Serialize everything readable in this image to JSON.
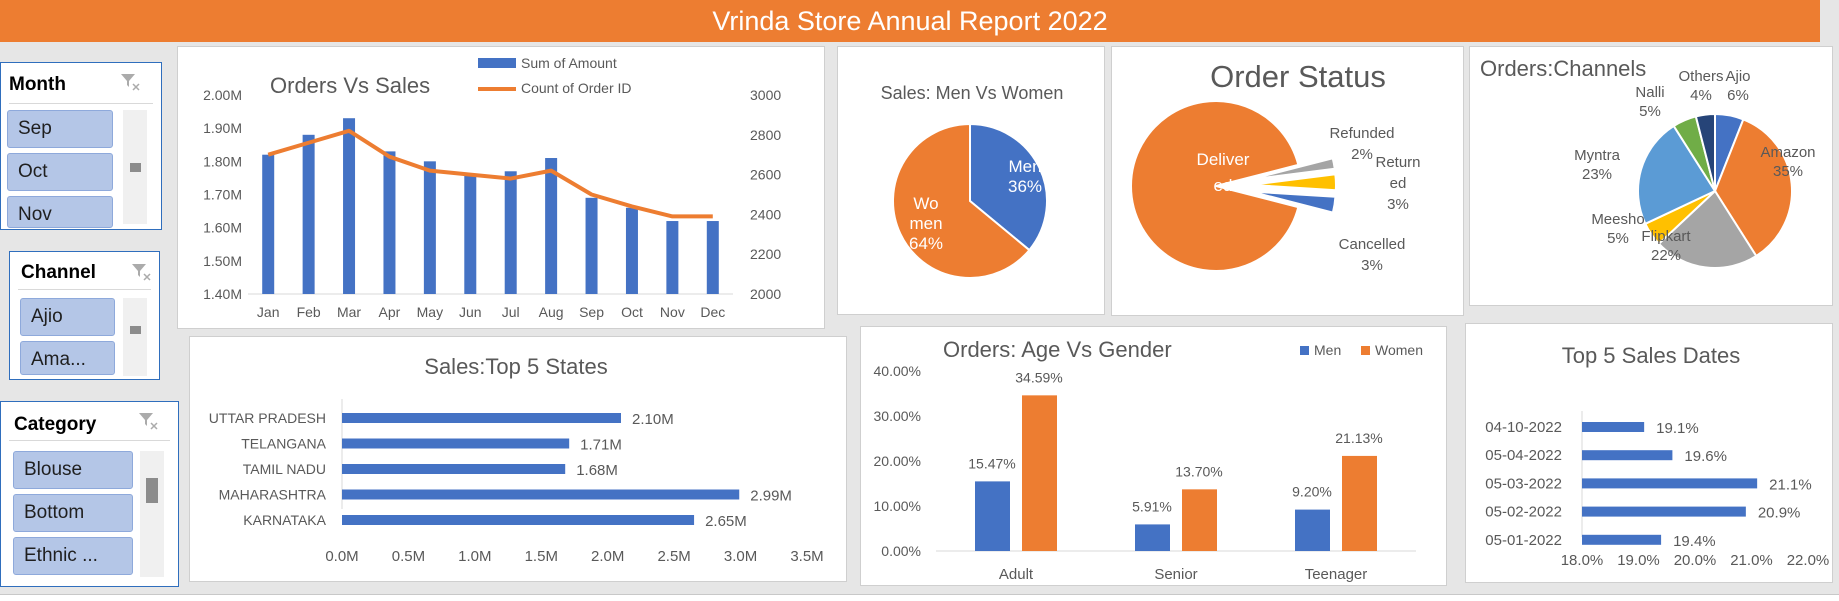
{
  "title": "Vrinda Store Annual Report 2022",
  "colors": {
    "accent": "#ed7d31",
    "blue": "#4472c4",
    "yellow": "#ffc000",
    "gray": "#a5a5a5",
    "light_blue": "#5b9bd5",
    "green": "#70ad47",
    "navy": "#264478"
  },
  "slicers": {
    "month": {
      "title": "Month",
      "items": [
        "Sep",
        "Oct",
        "Nov"
      ]
    },
    "channel": {
      "title": "Channel",
      "items": [
        "Ajio",
        "Ama..."
      ]
    },
    "category": {
      "title": "Category",
      "items": [
        "Blouse",
        "Bottom",
        "Ethnic ..."
      ]
    }
  },
  "chart_data": [
    {
      "id": "orders_vs_sales",
      "type": "bar",
      "title": "Orders Vs Sales",
      "categories": [
        "Jan",
        "Feb",
        "Mar",
        "Apr",
        "May",
        "Jun",
        "Jul",
        "Aug",
        "Sep",
        "Oct",
        "Nov",
        "Dec"
      ],
      "series": [
        {
          "name": "Sum of Amount",
          "type": "bar",
          "values": [
            1.82,
            1.88,
            1.93,
            1.83,
            1.8,
            1.76,
            1.77,
            1.81,
            1.69,
            1.66,
            1.62,
            1.62
          ]
        },
        {
          "name": "Count of Order ID",
          "type": "line",
          "axis": "secondary",
          "values": [
            2700,
            2760,
            2820,
            2690,
            2620,
            2600,
            2580,
            2620,
            2500,
            2440,
            2390,
            2390
          ]
        }
      ],
      "ylim": [
        1.4,
        2.0
      ],
      "y_ticks": [
        "1.40M",
        "1.50M",
        "1.60M",
        "1.70M",
        "1.80M",
        "1.90M",
        "2.00M"
      ],
      "y2lim": [
        2000,
        3000
      ],
      "y2_ticks": [
        "2000",
        "2200",
        "2400",
        "2600",
        "2800",
        "3000"
      ],
      "legend": "top-center"
    },
    {
      "id": "men_vs_women",
      "type": "pie",
      "title": "Sales: Men Vs Women",
      "slices": [
        {
          "label_lines": [
            "Men",
            "36%"
          ],
          "value": 36
        },
        {
          "label_lines": [
            "Wo",
            "men",
            "64%"
          ],
          "value": 64
        }
      ]
    },
    {
      "id": "order_status",
      "type": "pie",
      "title": "Order Status",
      "slices": [
        {
          "label_lines": [
            "Deliver",
            "ed"
          ],
          "value": 92
        },
        {
          "label_lines": [
            "Refunded",
            "2%"
          ],
          "value": 2
        },
        {
          "label_lines": [
            "Return",
            "ed",
            "3%"
          ],
          "value": 3
        },
        {
          "label_lines": [
            "Cancelled",
            "3%"
          ],
          "value": 3
        }
      ]
    },
    {
      "id": "orders_channels",
      "type": "pie",
      "title": "Orders:Channels",
      "slices": [
        {
          "label_lines": [
            "Ajio",
            "6%"
          ],
          "value": 6
        },
        {
          "label_lines": [
            "Amazon",
            "35%"
          ],
          "value": 35
        },
        {
          "label_lines": [
            "Flipkart",
            "22%"
          ],
          "value": 22
        },
        {
          "label_lines": [
            "Meesho",
            "5%"
          ],
          "value": 5
        },
        {
          "label_lines": [
            "Myntra",
            "23%"
          ],
          "value": 23
        },
        {
          "label_lines": [
            "Nalli",
            "5%"
          ],
          "value": 5
        },
        {
          "label_lines": [
            "Others",
            "4%"
          ],
          "value": 4
        }
      ]
    },
    {
      "id": "top5_states",
      "type": "bar",
      "orientation": "horizontal",
      "title": "Sales:Top 5 States",
      "categories": [
        "UTTAR PRADESH",
        "TELANGANA",
        "TAMIL NADU",
        "MAHARASHTRA",
        "KARNATAKA"
      ],
      "values": [
        2.1,
        1.71,
        1.68,
        2.99,
        2.65
      ],
      "value_labels": [
        "2.10M",
        "1.71M",
        "1.68M",
        "2.99M",
        "2.65M"
      ],
      "xlim": [
        0,
        3.5
      ],
      "x_ticks": [
        "0.0M",
        "0.5M",
        "1.0M",
        "1.5M",
        "2.0M",
        "2.5M",
        "3.0M",
        "3.5M"
      ]
    },
    {
      "id": "age_vs_gender",
      "type": "bar",
      "title": "Orders: Age Vs Gender",
      "categories": [
        "Adult",
        "Senior",
        "Teenager"
      ],
      "series": [
        {
          "name": "Men",
          "values": [
            15.47,
            5.91,
            9.2
          ],
          "labels": [
            "15.47%",
            "5.91%",
            "9.20%"
          ]
        },
        {
          "name": "Women",
          "values": [
            34.59,
            13.7,
            21.13
          ],
          "labels": [
            "34.59%",
            "13.70%",
            "21.13%"
          ]
        }
      ],
      "ylim": [
        0,
        40
      ],
      "y_ticks": [
        "0.00%",
        "10.00%",
        "20.00%",
        "30.00%",
        "40.00%"
      ],
      "legend": "top-right"
    },
    {
      "id": "top5_dates",
      "type": "bar",
      "orientation": "horizontal",
      "title": "Top 5 Sales Dates",
      "categories": [
        "04-10-2022",
        "05-04-2022",
        "05-03-2022",
        "05-02-2022",
        "05-01-2022"
      ],
      "values": [
        19.1,
        19.6,
        21.1,
        20.9,
        19.4
      ],
      "value_labels": [
        "19.1%",
        "19.6%",
        "21.1%",
        "20.9%",
        "19.4%"
      ],
      "xlim": [
        18,
        22
      ],
      "x_ticks": [
        "18.0%",
        "19.0%",
        "20.0%",
        "21.0%",
        "22.0%"
      ]
    }
  ]
}
